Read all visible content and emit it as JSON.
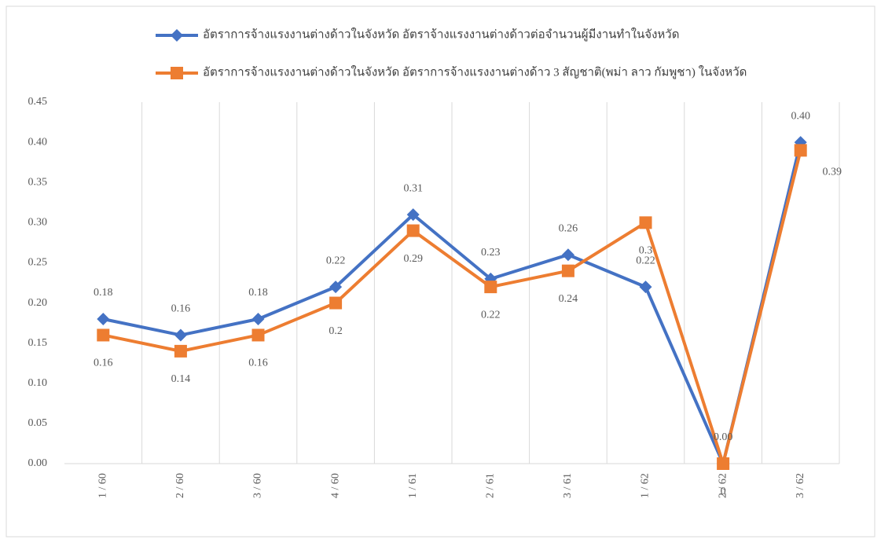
{
  "chart_data": {
    "type": "line",
    "categories": [
      "1 / 60",
      "2 / 60",
      "3 / 60",
      "4 / 60",
      "1 / 61",
      "2 / 61",
      "3 / 61",
      "1 / 62",
      "2 / 62",
      "3 / 62"
    ],
    "series": [
      {
        "name": "อัตราการจ้างแรงงานต่างด้าวในจังหวัด อัตราจ้างแรงงานต่างด้าวต่อจำนวนผู้มีงานทำในจังหวัด",
        "color": "#4472c4",
        "marker": "diamond",
        "values": [
          0.18,
          0.16,
          0.18,
          0.22,
          0.31,
          0.23,
          0.26,
          0.22,
          0,
          0.4
        ],
        "value_labels": [
          "0.18",
          "0.16",
          "0.18",
          "0.22",
          "0.31",
          "0.23",
          "0.26",
          "0.22",
          "0.00",
          "0.40"
        ]
      },
      {
        "name": "อัตราการจ้างแรงงานต่างด้าวในจังหวัด อัตราการจ้างแรงงานต่างด้าว 3 สัญชาติ(พม่า ลาว กัมพูชา) ในจังหวัด",
        "color": "#ed7d31",
        "marker": "square",
        "values": [
          0.16,
          0.14,
          0.16,
          0.2,
          0.29,
          0.22,
          0.24,
          0.3,
          0,
          0.39
        ]
      }
    ],
    "ylim": [
      0,
      0.45
    ],
    "yticks": [
      {
        "value": 0,
        "label": "0.00"
      },
      {
        "value": 0.05,
        "label": "0.05"
      },
      {
        "value": 0.1,
        "label": "0.10"
      },
      {
        "value": 0.15,
        "label": "0.15"
      },
      {
        "value": 0.2,
        "label": "0.20"
      },
      {
        "value": 0.25,
        "label": "0.25"
      },
      {
        "value": 0.3,
        "label": "0.30"
      },
      {
        "value": 0.35,
        "label": "0.35"
      },
      {
        "value": 0.4,
        "label": "0.40"
      },
      {
        "value": 0.45,
        "label": "0.45"
      }
    ],
    "grid": true
  }
}
